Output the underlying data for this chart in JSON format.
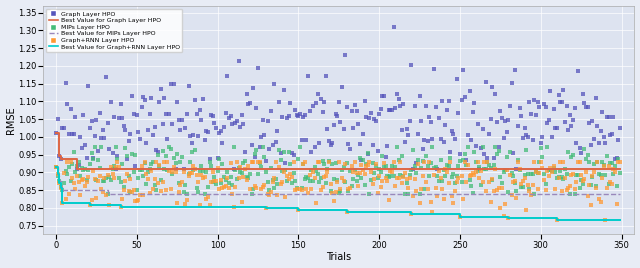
{
  "title": "",
  "xlabel": "Trials",
  "ylabel": "RMSE",
  "xlim": [
    -8,
    358
  ],
  "ylim": [
    0.725,
    1.37
  ],
  "yticks": [
    0.75,
    0.8,
    0.85,
    0.9,
    0.95,
    1.0,
    1.05,
    1.1,
    1.15,
    1.2,
    1.25,
    1.3,
    1.35
  ],
  "xticks": [
    0,
    50,
    100,
    150,
    200,
    250,
    300,
    350
  ],
  "bg_color": "#dde3f0",
  "fig_bg_color": "#e8ecf5",
  "legend_labels": [
    "Graph Layer HPO",
    "Best Value for Graph Layer HPO",
    "MlPs Layer HPO",
    "Best Value for MlPs Layer HPO",
    "Graph+RNN Layer HPO",
    "Best Value for Graph+RNN Layer HPO"
  ],
  "graph_color": "#5555bb",
  "mlps_color": "#44bb77",
  "graphrnn_color": "#ff9933",
  "best_graph_color": "#dd6644",
  "best_mlps_color": "#9988bb",
  "best_graphrnn_color": "#00cccc",
  "marker_size": 5,
  "seed": 42
}
